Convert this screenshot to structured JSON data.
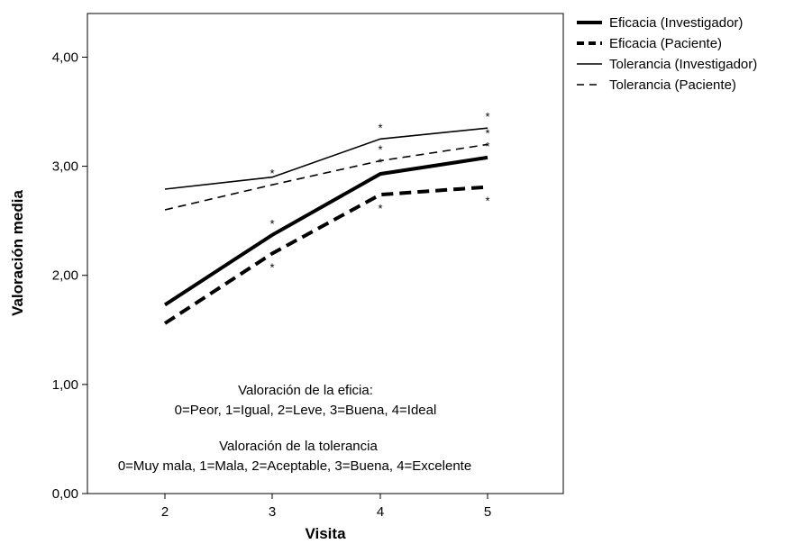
{
  "chart_data": {
    "type": "line",
    "xlabel": "Visita",
    "ylabel": "Valoración media",
    "categories": [
      "2",
      "3",
      "4",
      "5"
    ],
    "ylim": [
      0,
      4.4
    ],
    "yticks": [
      "0,00",
      "1,00",
      "2,00",
      "3,00",
      "4,00"
    ],
    "ytick_values": [
      0,
      1,
      2,
      3,
      4
    ],
    "grid": false,
    "legend_position": "outside-right",
    "series": [
      {
        "name": "Eficacia (Investigador)",
        "style": "thick-solid",
        "values": [
          1.73,
          2.37,
          2.93,
          3.08
        ],
        "significant": [
          false,
          true,
          true,
          true
        ]
      },
      {
        "name": "Eficacia (Paciente)",
        "style": "thick-dashed",
        "values": [
          1.56,
          2.2,
          2.74,
          2.81
        ],
        "significant": [
          false,
          true,
          true,
          true
        ]
      },
      {
        "name": "Tolerancia (Investigador)",
        "style": "thin-solid",
        "values": [
          2.79,
          2.9,
          3.25,
          3.35
        ],
        "significant": [
          false,
          false,
          true,
          true
        ]
      },
      {
        "name": "Tolerancia (Paciente)",
        "style": "thin-dashed",
        "values": [
          2.6,
          2.83,
          3.05,
          3.2
        ],
        "significant": [
          false,
          true,
          true,
          true
        ]
      }
    ],
    "significance_marker": "*",
    "annotations": [
      "Valoración de la eficia:",
      "0=Peor, 1=Igual, 2=Leve, 3=Buena, 4=Ideal",
      "Valoración de la tolerancia",
      "0=Muy mala, 1=Mala, 2=Aceptable, 3=Buena, 4=Excelente"
    ]
  }
}
